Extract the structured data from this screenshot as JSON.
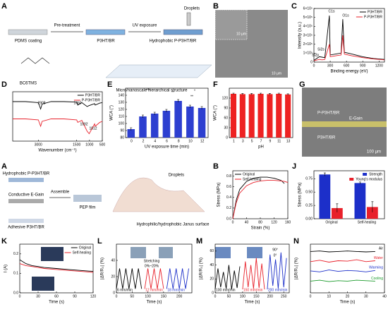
{
  "panel_labels": [
    "A",
    "B",
    "C",
    "D",
    "E",
    "F",
    "G",
    "A",
    "B",
    "J",
    "K",
    "L",
    "M",
    "N"
  ],
  "schematic_1": {
    "steps": [
      "PDMS coating",
      "Pre-treatment",
      "P3HT/BR",
      "UV exposure",
      "Hydrophobic P-P3HT/BR",
      "Droplets"
    ],
    "molecule": "BC6TMS",
    "structure": "Micro/nanoscale hierarchical structure"
  },
  "sem_b": {
    "scale_bars": [
      "10 μm",
      "10 μm"
    ]
  },
  "sem_g": {
    "labels": [
      "P-P3HT/BR",
      "E-Gain",
      "P3HT/BR"
    ],
    "scale_bar": "100 μm"
  },
  "schematic_2": {
    "labels": [
      "Hydrophobic P-P3HT/BR",
      "Assemble",
      "Conductive E-Gain",
      "PEP film",
      "Adhesive P3HT/BR",
      "Droplets",
      "Hydrophilic/hydrophobic Janus surface"
    ]
  },
  "chart_data": [
    {
      "type": "line",
      "xlabel": "Binding energy (eV)",
      "ylabel": "Intensity (a.u.)",
      "x": [
        0,
        100,
        150,
        200,
        285,
        300,
        400,
        500,
        532,
        560,
        700,
        900,
        1100,
        1300
      ],
      "series": [
        {
          "name": "P3HT/BR",
          "color": "#000000",
          "values": [
            20000,
            60000,
            55000,
            50000,
            520000,
            80000,
            90000,
            100000,
            480000,
            110000,
            90000,
            60000,
            40000,
            30000
          ]
        },
        {
          "name": "P-P3HT/BR",
          "color": "#e8202a",
          "values": [
            15000,
            30000,
            25000,
            30000,
            200000,
            60000,
            70000,
            80000,
            300000,
            90000,
            70000,
            50000,
            35000,
            25000
          ]
        }
      ],
      "xlim": [
        0,
        1300
      ],
      "xticks": [
        0,
        300,
        600,
        900,
        1200
      ],
      "ylim": [
        0,
        600000
      ],
      "yticks": [
        0,
        {
          "value": 100000,
          "label": "1×10⁵"
        },
        {
          "value": 200000,
          "label": "2×10⁵"
        },
        {
          "value": 300000,
          "label": "3×10⁵"
        },
        {
          "value": 400000,
          "label": "4×10⁵"
        },
        {
          "value": 500000,
          "label": "5×10⁵"
        },
        {
          "value": 600000,
          "label": "6×10⁵"
        }
      ],
      "legend": "upper right",
      "annotations": [
        "C1s",
        "O1s",
        "Si2s",
        "Si2p"
      ]
    },
    {
      "type": "line",
      "xlabel": "Wavenumber (cm⁻¹)",
      "x": [
        4000,
        3500,
        3000,
        2908,
        2850,
        2500,
        2000,
        1500,
        1460,
        1300,
        1092,
        1012,
        800,
        778,
        600,
        500
      ],
      "series": [
        {
          "name": "P3HT/BR",
          "color": "#000000",
          "values": [
            8,
            8,
            7.8,
            6.5,
            7.5,
            8,
            8,
            7.9,
            7.3,
            7.8,
            7.0,
            7.2,
            7.6,
            7.3,
            7.7,
            7.8
          ]
        },
        {
          "name": "P-P3HT/BR",
          "color": "#e8202a",
          "values": [
            4.5,
            4.5,
            4.3,
            3.0,
            4.0,
            4.5,
            4.5,
            4.3,
            3.8,
            4.2,
            2.0,
            1.5,
            3.5,
            3,
            3.8,
            4
          ]
        }
      ],
      "xlim": [
        4000,
        500
      ],
      "xticks": [
        3000,
        1500,
        1000,
        500
      ],
      "ylim": [
        0,
        10
      ],
      "yticks": [],
      "legend": "upper right",
      "annotations": [
        "2908",
        "1460",
        "1092",
        "1012"
      ]
    },
    {
      "type": "bar",
      "xlabel": "UV exposure time (min)",
      "ylabel": "WCA (°)",
      "categories": [
        "0",
        "2",
        "4",
        "6",
        "8",
        "10",
        "12"
      ],
      "values": [
        92,
        110,
        114,
        118,
        132,
        124,
        122
      ],
      "errors": [
        2,
        2,
        2,
        2,
        2,
        2,
        2
      ],
      "color": "#2d3fd0",
      "ylim": [
        80,
        150
      ],
      "yticks": [
        80,
        90,
        100,
        110,
        120,
        130,
        140
      ],
      "annotations": [
        "***",
        "**",
        "*",
        "**"
      ]
    },
    {
      "type": "bar",
      "xlabel": "pH",
      "ylabel": "WCA (°)",
      "categories": [
        "1",
        "3",
        "5",
        "7",
        "9",
        "11",
        "13"
      ],
      "values": [
        133,
        132,
        132,
        133,
        132,
        133,
        131
      ],
      "errors": [
        2,
        2,
        2,
        2,
        2,
        2,
        2
      ],
      "color": "#ee2222",
      "ylim": [
        0,
        150
      ],
      "yticks": [
        0,
        30,
        60,
        90,
        120
      ]
    },
    {
      "type": "line",
      "xlabel": "Strain (%)",
      "ylabel": "Stress (MPa)",
      "x": [
        0,
        10,
        20,
        40,
        60,
        80,
        100,
        120,
        140,
        150,
        160
      ],
      "series": [
        {
          "name": "Original",
          "color": "#000000",
          "values": [
            0,
            0.35,
            0.55,
            0.7,
            0.76,
            0.78,
            0.78,
            0.76,
            0.72,
            0.66,
            null
          ]
        },
        {
          "name": "Self-healing",
          "color": "#e8202a",
          "values": [
            0,
            0.3,
            0.48,
            0.62,
            0.68,
            0.71,
            0.72,
            0.72,
            0.71,
            0.7,
            0.68
          ]
        }
      ],
      "xlim": [
        0,
        160
      ],
      "xticks": [
        0,
        40,
        80,
        120,
        160
      ],
      "ylim": [
        0,
        0.9
      ],
      "yticks": [
        {
          "value": 0,
          "label": "0.0"
        },
        0.2,
        0.4,
        0.6,
        0.8
      ],
      "legend": "upper left"
    },
    {
      "type": "bar",
      "ylabel": "Stress (MPa)",
      "categories": [
        "Original",
        "Self-healing"
      ],
      "series": [
        {
          "name": "Strength",
          "color": "#1c2fc9",
          "values": [
            0.83,
            0.67
          ],
          "errors": [
            0.03,
            0.02
          ]
        },
        {
          "name": "Young's modulus",
          "color": "#e8202a",
          "values": [
            0.2,
            0.22
          ],
          "errors": [
            0.08,
            0.1
          ]
        }
      ],
      "ylim": [
        0,
        0.9
      ],
      "yticks": [
        {
          "value": 0,
          "label": "0.00"
        },
        0.25,
        {
          "value": 0.5,
          "label": "0.50"
        },
        0.75
      ],
      "legend": "upper right"
    },
    {
      "type": "line",
      "xlabel": "Time (s)",
      "ylabel": "I (A)",
      "x": [
        0,
        10,
        20,
        30,
        40,
        60,
        80,
        100,
        120
      ],
      "series": [
        {
          "name": "Original",
          "color": "#000000",
          "values": [
            0.17,
            0.15,
            0.14,
            0.135,
            0.13,
            0.125,
            0.12,
            0.115,
            0.11
          ]
        },
        {
          "name": "Self-healing",
          "color": "#e8202a",
          "values": [
            0.15,
            0.14,
            0.135,
            0.13,
            0.125,
            0.12,
            0.115,
            0.11,
            0.105
          ]
        }
      ],
      "xlim": [
        0,
        120
      ],
      "xticks": [
        0,
        30,
        60,
        90,
        120
      ],
      "ylim": [
        0,
        0.25
      ],
      "yticks": [
        {
          "value": 0,
          "label": "0.0"
        },
        0.1,
        0.2
      ],
      "legend": "upper right"
    },
    {
      "type": "line",
      "xlabel": "Time (s)",
      "ylabel": "|ΔR/R₀| (%)",
      "series": [
        {
          "name": "6 mm/min",
          "color": "#000000",
          "x": [
            0,
            10,
            20,
            30,
            40,
            50,
            60,
            70,
            80
          ],
          "values": [
            5,
            30,
            5,
            30,
            5,
            30,
            5,
            30,
            5
          ]
        },
        {
          "name": "12 mm/min",
          "color": "#e8202a",
          "x": [
            90,
            100,
            110,
            120,
            130,
            140,
            150
          ],
          "values": [
            5,
            30,
            5,
            30,
            5,
            30,
            5
          ]
        },
        {
          "name": "18 mm/min",
          "color": "#1c2fc9",
          "x": [
            160,
            170,
            180,
            190,
            200,
            210,
            220,
            230
          ],
          "values": [
            5,
            30,
            5,
            30,
            5,
            30,
            5,
            30
          ]
        }
      ],
      "xlim": [
        0,
        240
      ],
      "xticks": [
        0,
        50,
        100,
        150,
        200
      ],
      "ylim": [
        0,
        60
      ],
      "yticks": [
        0,
        20,
        40
      ],
      "legend": "inline",
      "annotations": [
        "Stretching",
        "0%~20%"
      ]
    },
    {
      "type": "line",
      "xlabel": "Time (s)",
      "ylabel": "|ΔR/R₀| (%)",
      "series": [
        {
          "name": "100 mm/min",
          "color": "#000000",
          "x": [
            0,
            10,
            20,
            30,
            40,
            50,
            60,
            70,
            80,
            90
          ],
          "values": [
            5,
            35,
            8,
            30,
            6,
            40,
            5,
            32,
            7,
            38
          ]
        },
        {
          "name": "150 mm/min",
          "color": "#e8202a",
          "x": [
            100,
            110,
            120,
            130,
            140,
            150,
            160,
            170,
            180
          ],
          "values": [
            5,
            45,
            8,
            40,
            6,
            50,
            7,
            42,
            5
          ]
        },
        {
          "name": "200 mm/min",
          "color": "#1c2fc9",
          "x": [
            190,
            200,
            210,
            220,
            230,
            240,
            250,
            260
          ],
          "values": [
            5,
            55,
            10,
            48,
            6,
            58,
            8,
            50
          ]
        }
      ],
      "xlim": [
        0,
        270
      ],
      "xticks": [
        0,
        50,
        100,
        150,
        200,
        250
      ],
      "ylim": [
        0,
        70
      ],
      "yticks": [
        0,
        20,
        40,
        60
      ],
      "legend": "inline",
      "annotations": [
        "90°",
        "0°"
      ]
    },
    {
      "type": "line",
      "xlabel": "Time (s)",
      "ylabel": "|ΔR/R₀| (%)",
      "x": [
        0,
        5,
        10,
        15,
        20,
        25,
        30,
        35
      ],
      "series": [
        {
          "name": "Air",
          "color": "#000000",
          "values": [
            8.5,
            8.6,
            8.4,
            8.5,
            8.6,
            8.5,
            8.4,
            8.5
          ]
        },
        {
          "name": "Water",
          "color": "#e8202a",
          "values": [
            6.4,
            6.7,
            6.3,
            6.6,
            6.5,
            6.8,
            6.4,
            6.6
          ]
        },
        {
          "name": "Warming",
          "color": "#1c2fc9",
          "values": [
            4.5,
            4.3,
            4.7,
            4.4,
            4.6,
            4.5,
            4.3,
            4.6
          ]
        },
        {
          "name": "Cooling",
          "color": "#1a9a2a",
          "values": [
            2.4,
            2.6,
            2.3,
            2.5,
            2.4,
            2.6,
            2.5,
            2.4
          ]
        }
      ],
      "xlim": [
        0,
        40
      ],
      "xticks": [
        0,
        10,
        20,
        30,
        40
      ],
      "ylim": [
        0,
        10
      ],
      "yticks": [],
      "legend": "right"
    }
  ]
}
